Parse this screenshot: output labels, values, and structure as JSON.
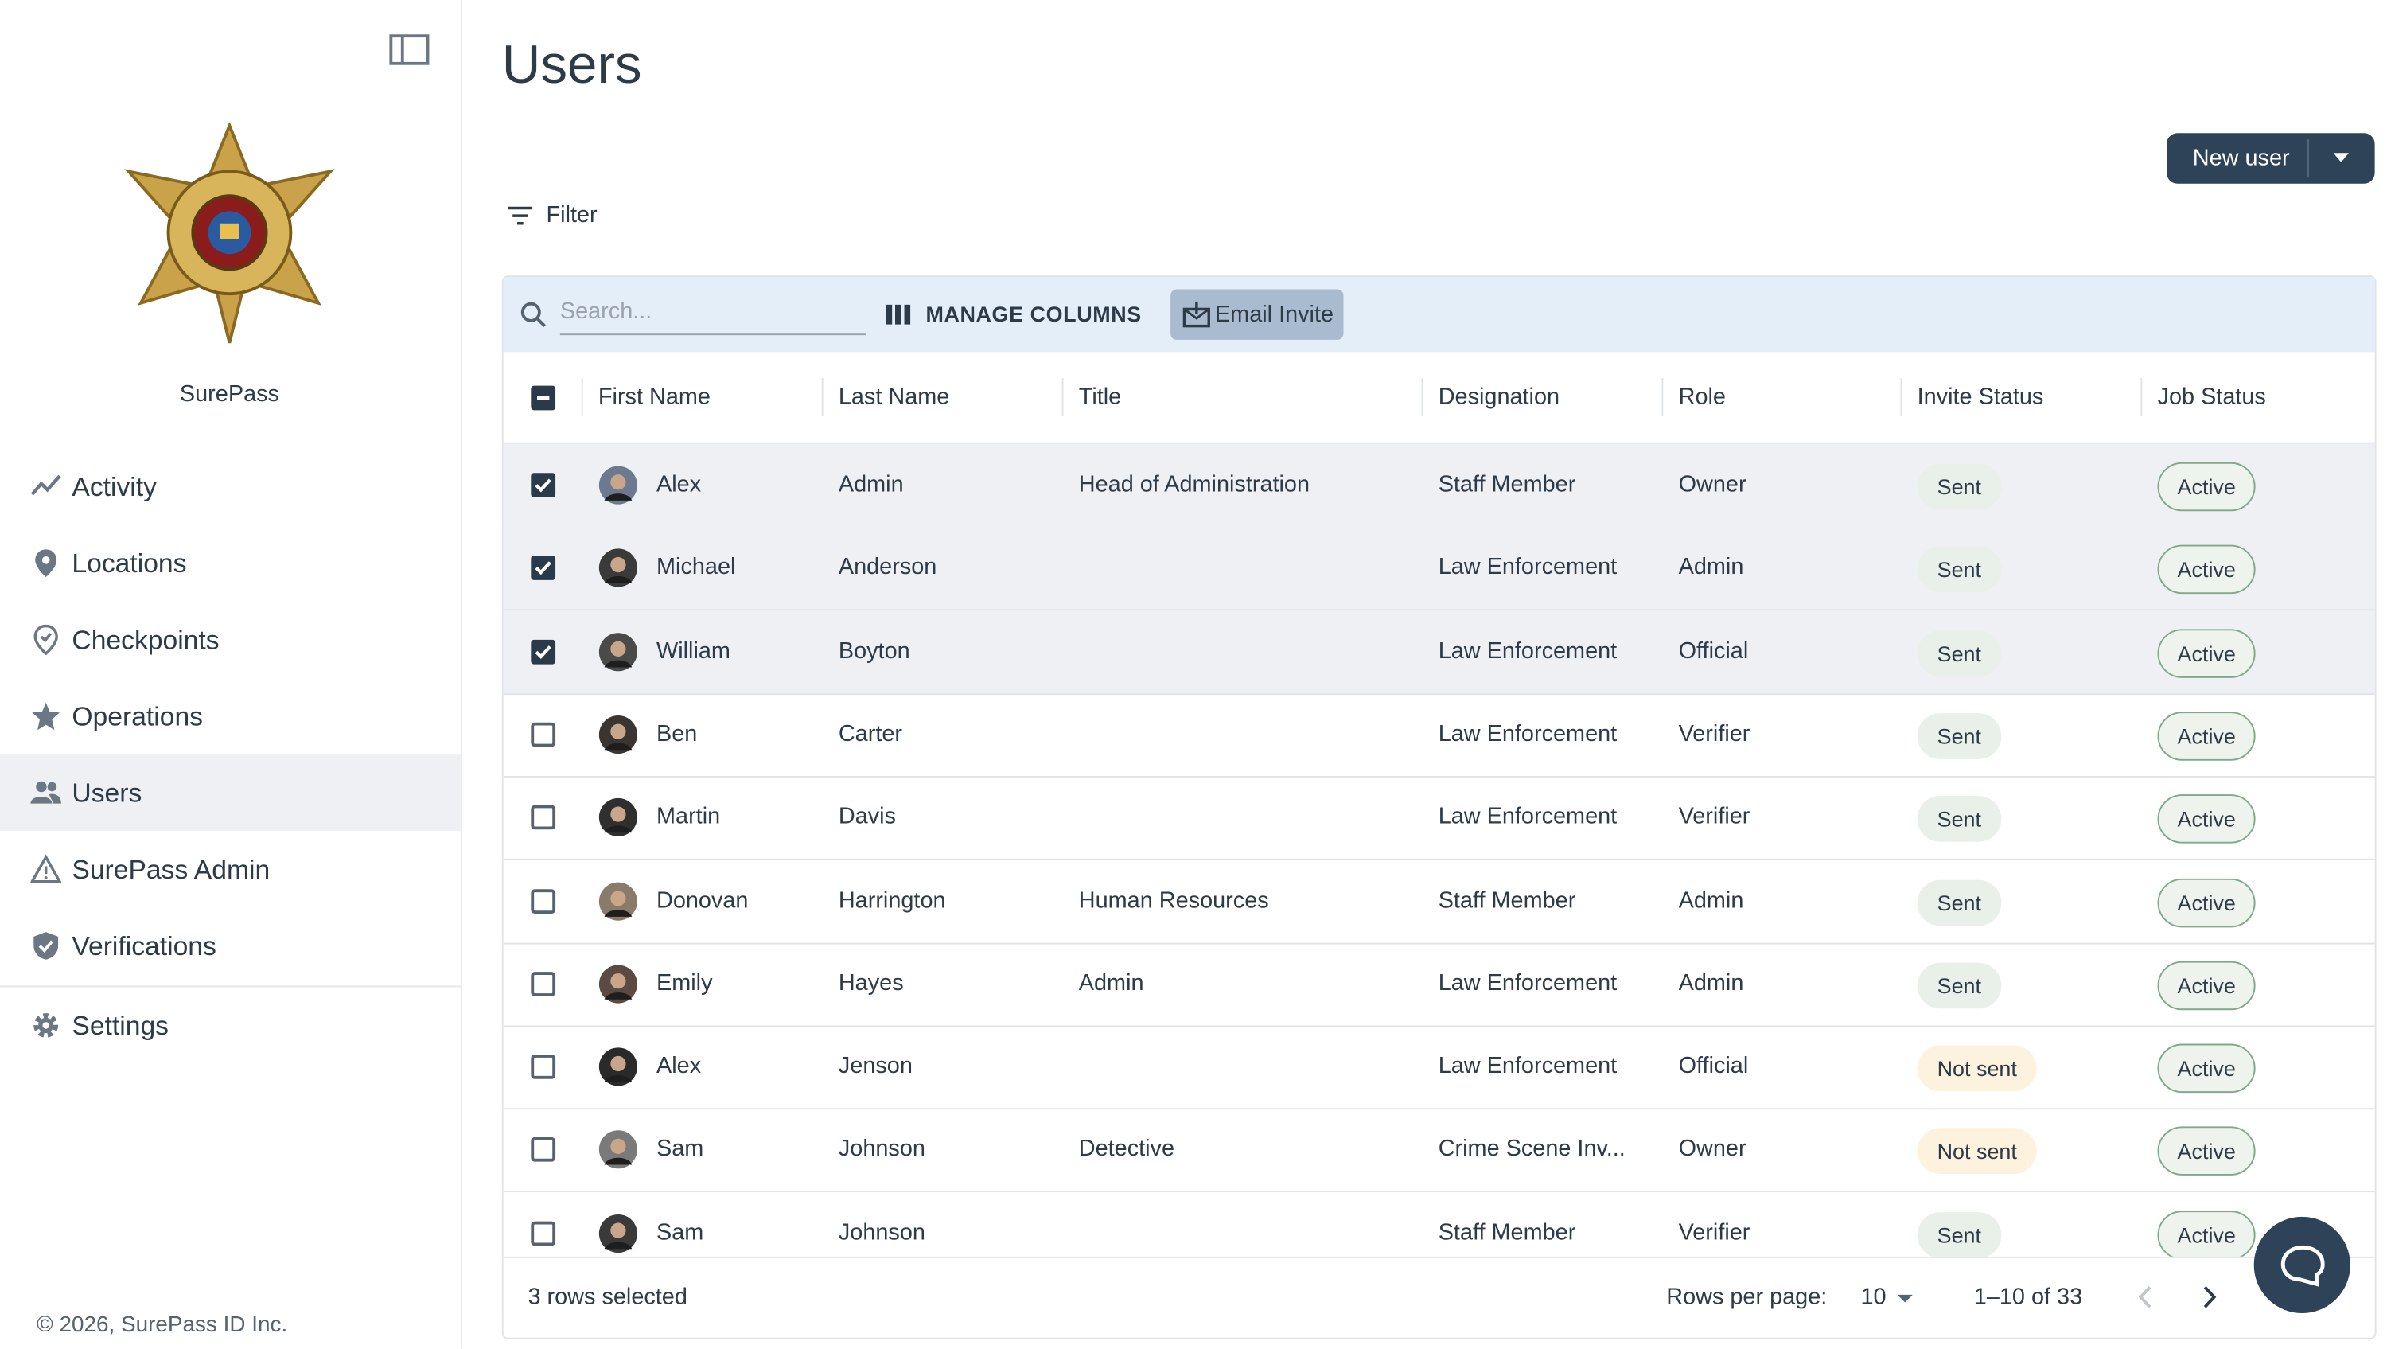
{
  "sidebar": {
    "brand": "SurePass",
    "nav": [
      "Activity",
      "Locations",
      "Checkpoints",
      "Operations",
      "Users",
      "SurePass Admin",
      "Verifications",
      "Settings"
    ],
    "active": "Users",
    "footer": "© 2026, SurePass ID Inc."
  },
  "header": {
    "title": "Users",
    "new_user": "New user",
    "filter": "Filter"
  },
  "toolbar": {
    "search_placeholder": "Search...",
    "manage_columns": "MANAGE COLUMNS",
    "email_invite": "Email Invite"
  },
  "table": {
    "columns": [
      "First Name",
      "Last Name",
      "Title",
      "Designation",
      "Role",
      "Invite Status",
      "Job Status"
    ],
    "rows": [
      {
        "selected": true,
        "cells": [
          "Alex",
          "Admin",
          "Head of Administration",
          "Staff Member",
          "Owner",
          "Sent",
          "Active"
        ]
      },
      {
        "selected": true,
        "cells": [
          "Michael",
          "Anderson",
          null,
          "Law Enforcement",
          "Admin",
          "Sent",
          "Active"
        ]
      },
      {
        "selected": true,
        "cells": [
          "William",
          "Boyton",
          null,
          "Law Enforcement",
          "Official",
          "Sent",
          "Active"
        ]
      },
      {
        "selected": false,
        "cells": [
          "Ben",
          "Carter",
          null,
          "Law Enforcement",
          "Verifier",
          "Sent",
          "Active"
        ]
      },
      {
        "selected": false,
        "cells": [
          "Martin",
          "Davis",
          null,
          "Law Enforcement",
          "Verifier",
          "Sent",
          "Active"
        ]
      },
      {
        "selected": false,
        "cells": [
          "Donovan",
          "Harrington",
          "Human Resources",
          "Staff Member",
          "Admin",
          "Sent",
          "Active"
        ]
      },
      {
        "selected": false,
        "cells": [
          "Emily",
          "Hayes",
          "Admin",
          "Law Enforcement",
          "Admin",
          "Sent",
          "Active"
        ]
      },
      {
        "selected": false,
        "cells": [
          "Alex",
          "Jenson",
          null,
          "Law Enforcement",
          "Official",
          "Not sent",
          "Active"
        ]
      },
      {
        "selected": false,
        "cells": [
          "Sam",
          "Johnson",
          "Detective",
          "Crime Scene Inv...",
          "Owner",
          "Not sent",
          "Active"
        ]
      },
      {
        "selected": false,
        "cells": [
          "Sam",
          "Johnson",
          null,
          "Staff Member",
          "Verifier",
          "Sent",
          "Active"
        ]
      }
    ]
  },
  "pagination": {
    "selected_text": "3 rows selected",
    "rows_per_page_label": "Rows per page:",
    "rows_per_page": "10",
    "range": "1–10 of 33"
  }
}
